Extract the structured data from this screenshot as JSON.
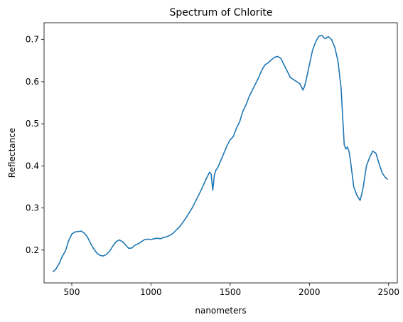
{
  "chart_data": {
    "type": "line",
    "title": "Spectrum of Chlorite",
    "xlabel": "nanometers",
    "ylabel": "Reflectance",
    "xlim": [
      325,
      2555
    ],
    "ylim": [
      0.122,
      0.74
    ],
    "xticks": [
      500,
      1000,
      1500,
      2000,
      2500
    ],
    "xtick_labels": [
      "500",
      "1000",
      "1500",
      "2000",
      "2500"
    ],
    "yticks": [
      0.2,
      0.3,
      0.4,
      0.5,
      0.6,
      0.7
    ],
    "ytick_labels": [
      "0.2",
      "0.3",
      "0.4",
      "0.5",
      "0.6",
      "0.7"
    ],
    "grid": false,
    "series": [
      {
        "color": "#1f77b4",
        "x": [
          380,
          400,
          420,
          440,
          460,
          480,
          500,
          520,
          540,
          560,
          580,
          600,
          620,
          640,
          660,
          680,
          700,
          720,
          740,
          760,
          780,
          800,
          820,
          840,
          860,
          880,
          900,
          920,
          940,
          960,
          980,
          1000,
          1020,
          1040,
          1060,
          1080,
          1100,
          1120,
          1140,
          1160,
          1180,
          1200,
          1220,
          1240,
          1260,
          1280,
          1300,
          1320,
          1340,
          1360,
          1370,
          1380,
          1390,
          1400,
          1410,
          1420,
          1440,
          1460,
          1480,
          1500,
          1520,
          1540,
          1560,
          1580,
          1600,
          1620,
          1640,
          1660,
          1680,
          1700,
          1720,
          1740,
          1760,
          1780,
          1800,
          1820,
          1840,
          1860,
          1880,
          1900,
          1920,
          1940,
          1960,
          1970,
          1980,
          2000,
          2020,
          2040,
          2060,
          2080,
          2090,
          2100,
          2110,
          2120,
          2140,
          2160,
          2180,
          2200,
          2220,
          2230,
          2240,
          2250,
          2260,
          2270,
          2280,
          2300,
          2320,
          2330,
          2340,
          2360,
          2380,
          2400,
          2420,
          2440,
          2460,
          2480,
          2495
        ],
        "y": [
          0.148,
          0.155,
          0.168,
          0.185,
          0.198,
          0.222,
          0.238,
          0.243,
          0.244,
          0.245,
          0.24,
          0.23,
          0.215,
          0.202,
          0.192,
          0.187,
          0.186,
          0.19,
          0.198,
          0.21,
          0.22,
          0.224,
          0.22,
          0.212,
          0.204,
          0.205,
          0.212,
          0.215,
          0.22,
          0.225,
          0.226,
          0.225,
          0.227,
          0.228,
          0.227,
          0.23,
          0.232,
          0.235,
          0.24,
          0.248,
          0.255,
          0.265,
          0.276,
          0.288,
          0.3,
          0.315,
          0.33,
          0.345,
          0.362,
          0.378,
          0.385,
          0.38,
          0.342,
          0.378,
          0.39,
          0.395,
          0.412,
          0.43,
          0.448,
          0.462,
          0.47,
          0.49,
          0.505,
          0.53,
          0.545,
          0.565,
          0.58,
          0.595,
          0.61,
          0.628,
          0.64,
          0.645,
          0.652,
          0.658,
          0.66,
          0.655,
          0.64,
          0.625,
          0.61,
          0.605,
          0.6,
          0.595,
          0.58,
          0.59,
          0.605,
          0.64,
          0.675,
          0.695,
          0.708,
          0.71,
          0.705,
          0.702,
          0.705,
          0.707,
          0.7,
          0.682,
          0.65,
          0.585,
          0.45,
          0.44,
          0.445,
          0.435,
          0.41,
          0.38,
          0.35,
          0.33,
          0.318,
          0.332,
          0.35,
          0.4,
          0.42,
          0.435,
          0.43,
          0.405,
          0.383,
          0.372,
          0.368
        ]
      }
    ]
  }
}
